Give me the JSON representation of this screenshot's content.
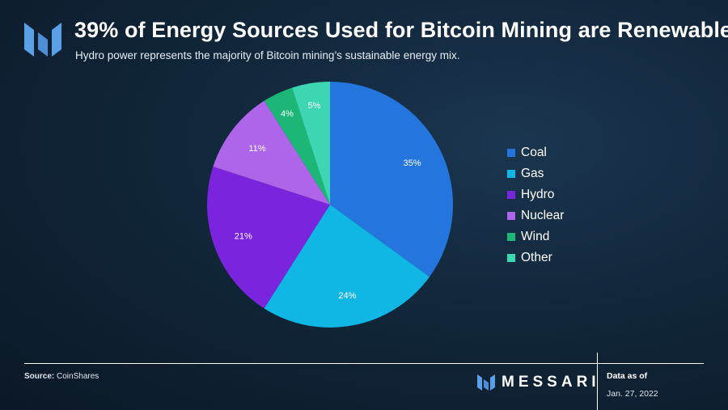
{
  "header": {
    "title": "39% of Energy Sources Used for Bitcoin Mining are Renewable",
    "subtitle": "Hydro power represents the majority of Bitcoin mining’s sustainable energy mix."
  },
  "chart_data": {
    "type": "pie",
    "categories": [
      "Coal",
      "Gas",
      "Hydro",
      "Nuclear",
      "Wind",
      "Other"
    ],
    "values": [
      35,
      24,
      21,
      11,
      4,
      5
    ],
    "labels": [
      "35%",
      "24%",
      "21%",
      "11%",
      "4%",
      "5%"
    ],
    "colors": [
      "#2476de",
      "#10b7e5",
      "#7b24de",
      "#ae65ea",
      "#1cb777",
      "#3dd6b3"
    ],
    "legend_position": "right",
    "title": "",
    "xlabel": "",
    "ylabel": ""
  },
  "footer": {
    "source_label": "Source:",
    "source_value": "CoinShares",
    "brand_name": "MESSARI",
    "data_as_of_label": "Data as of",
    "data_as_of_date": "Jan. 27, 2022"
  }
}
